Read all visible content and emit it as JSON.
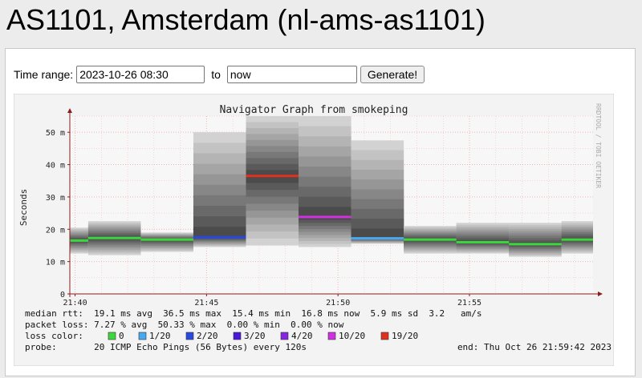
{
  "page": {
    "title": "AS1101, Amsterdam (nl-ams-as1101)"
  },
  "form": {
    "time_range_label": "Time range:",
    "start_value": "2023-10-26 08:30",
    "to_label": "to",
    "end_value": "now",
    "generate_label": "Generate!"
  },
  "graph": {
    "title": "Navigator Graph from smokeping",
    "watermark": "RRDTOOL / TOBI OETIKER",
    "colors": {
      "background": "#f7f7f7",
      "grid": "#f2b5b5",
      "axis": "#8a1c1c"
    },
    "legend": {
      "median_rtt": "median rtt:  19.1 ms avg  36.5 ms max  15.4 ms min  16.8 ms now  5.9 ms sd  3.2   am/s",
      "packet_loss": "packet loss: 7.27 % avg  50.33 % max  0.00 % min  0.00 % now",
      "loss_color_label": "loss color:",
      "loss_colors": [
        {
          "label": "0",
          "color": "#3cd73c"
        },
        {
          "label": "1/20",
          "color": "#48a8f0"
        },
        {
          "label": "2/20",
          "color": "#2848e0"
        },
        {
          "label": "3/20",
          "color": "#4a18d8"
        },
        {
          "label": "4/20",
          "color": "#8824e0"
        },
        {
          "label": "10/20",
          "color": "#d030e0"
        },
        {
          "label": "19/20",
          "color": "#e03020"
        }
      ],
      "probe": "probe:       20 ICMP Echo Pings (56 Bytes) every 120s",
      "end": "end: Thu Oct 26 21:59:42 2023"
    }
  },
  "chart_data": {
    "type": "area",
    "title": "Navigator Graph from smokeping",
    "ylabel": "Seconds",
    "xlabel": "",
    "y_ticks": [
      "0",
      "10 m",
      "20 m",
      "30 m",
      "40 m",
      "50 m"
    ],
    "y_tick_values": [
      0,
      10,
      20,
      30,
      40,
      50
    ],
    "x_ticks": [
      "21:40",
      "21:45",
      "21:50",
      "21:55"
    ],
    "x_tick_minutes": [
      40,
      45,
      50,
      55
    ],
    "ylim": [
      0,
      55
    ],
    "xlim_minutes": [
      39.8,
      59.7
    ],
    "grid": true,
    "units": "ms",
    "intervals": [
      {
        "start": 39.8,
        "end": 40.5,
        "median": 16.5,
        "min": 12.5,
        "max": 20.5,
        "loss_color": "#3cd73c"
      },
      {
        "start": 40.5,
        "end": 42.5,
        "median": 17.3,
        "min": 12.0,
        "max": 22.5,
        "loss_color": "#3cd73c"
      },
      {
        "start": 42.5,
        "end": 44.5,
        "median": 16.8,
        "min": 13.0,
        "max": 19.0,
        "loss_color": "#3cd73c"
      },
      {
        "start": 44.5,
        "end": 46.5,
        "median": 17.5,
        "min": 14.5,
        "max": 50.0,
        "loss_color": "#2848e0"
      },
      {
        "start": 46.5,
        "end": 48.5,
        "median": 36.5,
        "min": 15.0,
        "max": 55.0,
        "loss_color": "#e03020"
      },
      {
        "start": 48.5,
        "end": 50.5,
        "median": 23.8,
        "min": 14.5,
        "max": 55.0,
        "loss_color": "#d030e0"
      },
      {
        "start": 50.5,
        "end": 52.5,
        "median": 17.2,
        "min": 15.5,
        "max": 47.5,
        "loss_color": "#48a8f0"
      },
      {
        "start": 52.5,
        "end": 54.5,
        "median": 16.8,
        "min": 12.5,
        "max": 21.0,
        "loss_color": "#3cd73c"
      },
      {
        "start": 54.5,
        "end": 56.5,
        "median": 16.0,
        "min": 12.5,
        "max": 22.0,
        "loss_color": "#3cd73c"
      },
      {
        "start": 56.5,
        "end": 58.5,
        "median": 15.4,
        "min": 11.5,
        "max": 22.0,
        "loss_color": "#3cd73c"
      },
      {
        "start": 58.5,
        "end": 59.7,
        "median": 16.8,
        "min": 12.5,
        "max": 22.5,
        "loss_color": "#3cd73c"
      }
    ]
  }
}
